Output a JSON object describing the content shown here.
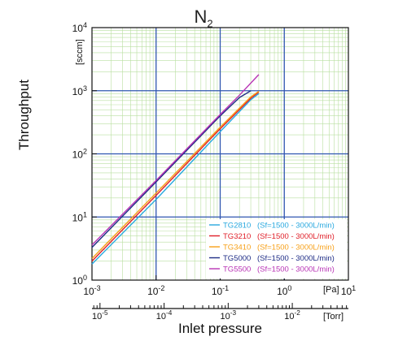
{
  "title": {
    "main": "N",
    "sub": "2"
  },
  "chart_data": {
    "type": "line",
    "title": "N2",
    "xlabel": "Inlet pressure",
    "ylabel": "Throughput",
    "y_unit": "[sccm]",
    "x_unit_primary": "[Pa]",
    "x_unit_secondary": "[Torr]",
    "xscale": "log",
    "yscale": "log",
    "xlim": [
      0.001,
      10
    ],
    "ylim": [
      1,
      10000
    ],
    "x_ticks": [
      "10-3",
      "10-2",
      "10-1",
      "100",
      "101"
    ],
    "y_ticks": [
      "100",
      "101",
      "102",
      "103",
      "104"
    ],
    "secondary_x_ticks": [
      "10-5",
      "10-4",
      "10-3",
      "10-2"
    ],
    "grid": true,
    "legend_position": "bottom-right",
    "series": [
      {
        "name": "TG2810",
        "note": "(Sf=1500 - 3000L/min)",
        "color": "#29a8df",
        "x": [
          0.001,
          0.01,
          0.1,
          0.3,
          0.4
        ],
        "y": [
          1.8,
          19,
          225,
          720,
          900
        ]
      },
      {
        "name": "TG3210",
        "note": "(Sf=1500 - 3000L/min)",
        "color": "#e0202a",
        "x": [
          0.001,
          0.01,
          0.1,
          0.3,
          0.4
        ],
        "y": [
          2.0,
          22,
          250,
          760,
          950
        ]
      },
      {
        "name": "TG3410",
        "note": "(Sf=1500 - 3000L/min)",
        "color": "#f7a11a",
        "x": [
          0.001,
          0.01,
          0.1,
          0.3,
          0.4
        ],
        "y": [
          2.2,
          24,
          265,
          800,
          980
        ]
      },
      {
        "name": "TG5000",
        "note": "(Sf=1500 - 3000L/min)",
        "color": "#1f2d86",
        "x": [
          0.001,
          0.01,
          0.1,
          0.2,
          0.3
        ],
        "y": [
          3.3,
          36,
          400,
          780,
          1000
        ]
      },
      {
        "name": "TG5500",
        "note": "(Sf=1500 - 3000L/min)",
        "color": "#b833b5",
        "x": [
          0.001,
          0.01,
          0.1,
          0.2,
          0.4
        ],
        "y": [
          3.6,
          38,
          420,
          850,
          1800
        ]
      }
    ]
  }
}
